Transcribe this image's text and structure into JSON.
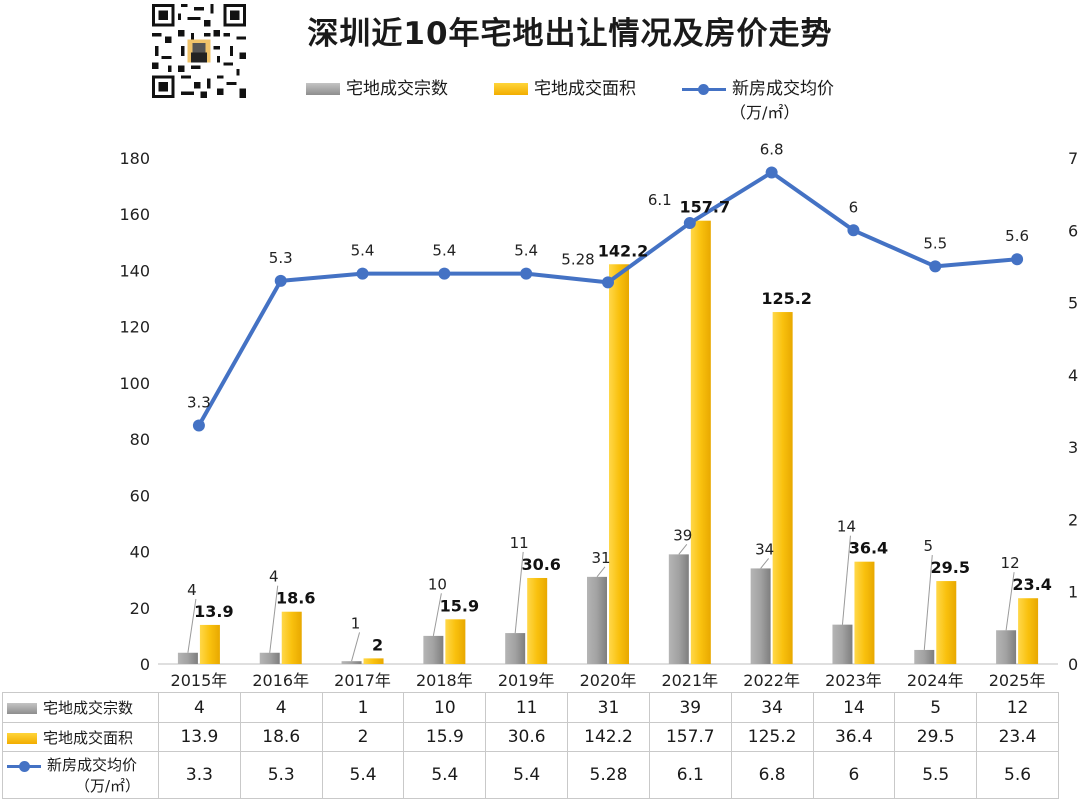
{
  "title": "深圳近10年宅地出让情况及房价走势",
  "legend": {
    "count": "宅地成交宗数",
    "area": "宅地成交面积",
    "price": "新房成交均价",
    "price_unit": "（万/㎡）"
  },
  "table": {
    "row_count_label": "宅地成交宗数",
    "row_area_label": "宅地成交面积",
    "row_price_label": "新房成交均价",
    "row_price_unit": "（万/㎡）"
  },
  "colors": {
    "count": "#9a9a9a",
    "area": "#f5b800",
    "price": "#4472c4"
  },
  "chart_data": {
    "type": "bar+line",
    "title": "深圳近10年宅地出让情况及房价走势",
    "categories": [
      "2015年",
      "2016年",
      "2017年",
      "2018年",
      "2019年",
      "2020年",
      "2021年",
      "2022年",
      "2023年",
      "2024年",
      "2025年"
    ],
    "series": [
      {
        "name": "宅地成交宗数",
        "type": "bar",
        "axis": "left",
        "values": [
          4,
          4,
          1,
          10,
          11,
          31,
          39,
          34,
          14,
          5,
          12
        ]
      },
      {
        "name": "宅地成交面积",
        "type": "bar",
        "axis": "left",
        "values": [
          13.9,
          18.6,
          2,
          15.9,
          30.6,
          142.2,
          157.7,
          125.2,
          36.4,
          29.5,
          23.4
        ]
      },
      {
        "name": "新房成交均价（万/㎡）",
        "type": "line",
        "axis": "right",
        "values": [
          3.3,
          5.3,
          5.4,
          5.4,
          5.4,
          5.28,
          6.1,
          6.8,
          6,
          5.5,
          5.6
        ]
      }
    ],
    "y_left": {
      "min": 0,
      "max": 180,
      "ticks": [
        0,
        20,
        40,
        60,
        80,
        100,
        120,
        140,
        160,
        180
      ]
    },
    "y_right": {
      "min": 0,
      "max": 7,
      "ticks": [
        0,
        1,
        2,
        3,
        4,
        5,
        6,
        7
      ]
    },
    "legend_position": "top",
    "grid": false
  }
}
